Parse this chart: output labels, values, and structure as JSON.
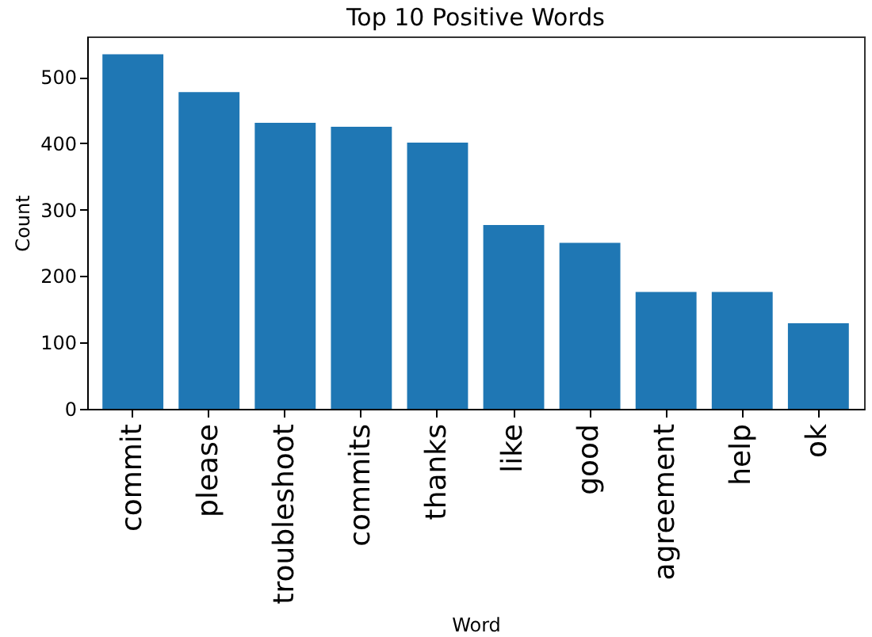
{
  "chart_data": {
    "type": "bar",
    "title": "Top 10 Positive Words",
    "xlabel": "Word",
    "ylabel": "Count",
    "categories": [
      "commit",
      "please",
      "troubleshoot",
      "commits",
      "thanks",
      "like",
      "good",
      "agreement",
      "help",
      "ok"
    ],
    "values": [
      534,
      477,
      431,
      425,
      401,
      277,
      250,
      176,
      176,
      129
    ],
    "color": "#1f77b4",
    "ylim": [
      0,
      561
    ],
    "yticks": [
      0,
      100,
      200,
      300,
      400,
      500
    ],
    "grid": false
  }
}
